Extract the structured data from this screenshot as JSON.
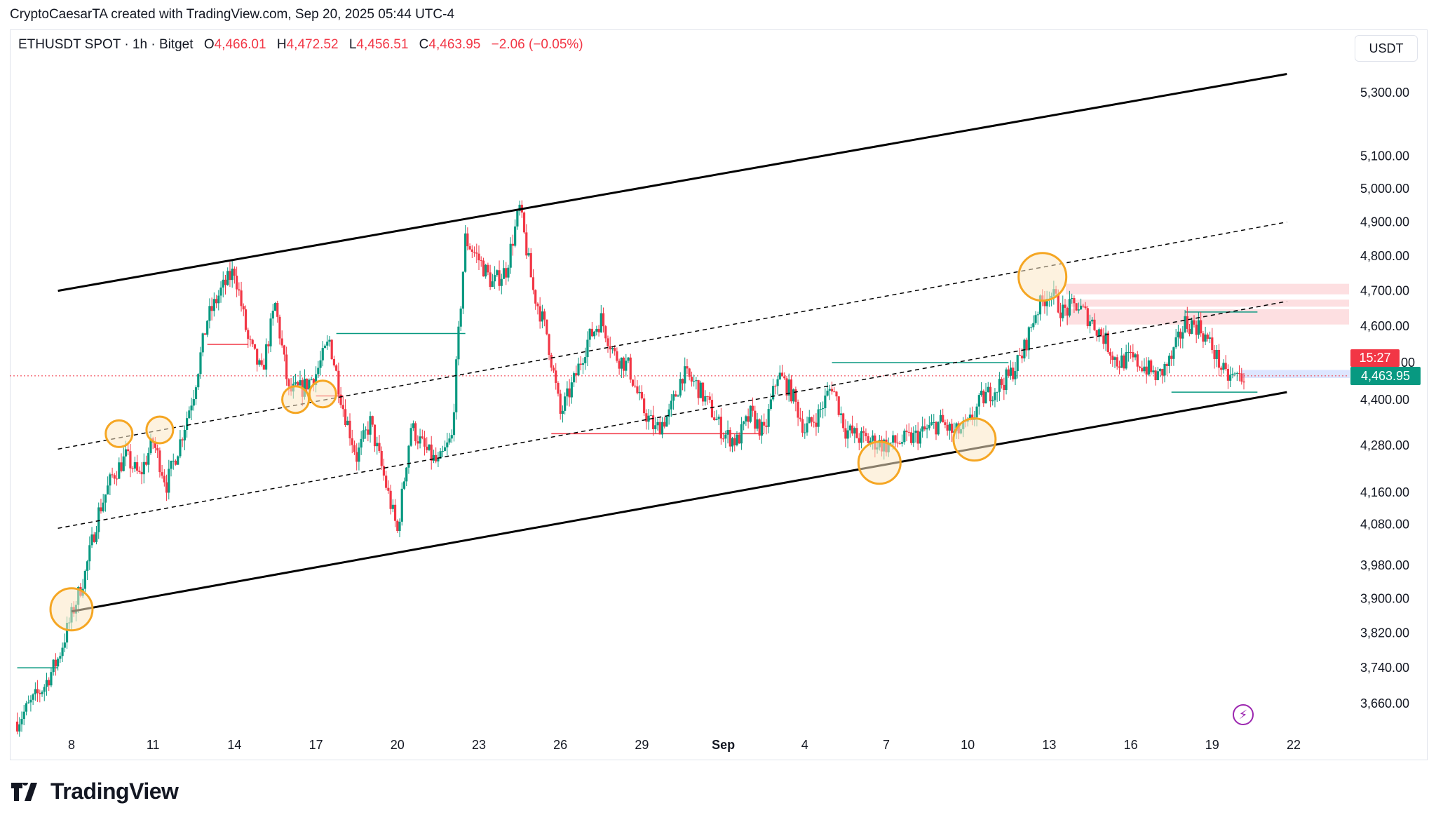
{
  "credit": "CryptoCaesarTA created with TradingView.com, Sep 20, 2025 05:44 UTC-4",
  "legend": {
    "symbol": "ETHUSDT SPOT · 1h · Bitget",
    "o_label": "O",
    "o": "4,466.01",
    "h_label": "H",
    "h": "4,472.52",
    "l_label": "L",
    "l": "4,456.51",
    "c_label": "C",
    "c": "4,463.95",
    "change": "−2.06 (−0.05%)"
  },
  "currency": "USDT",
  "countdown": "15:27",
  "last_price": "4,463.95",
  "brand": "TradingView",
  "colors": {
    "up": "#089981",
    "down": "#f23645",
    "highlight": "#f5a623",
    "trendline": "#000000"
  },
  "chart_data": {
    "type": "candlestick",
    "symbol": "ETHUSDT",
    "interval": "1h",
    "y_scale": "log",
    "ylim": [
      3600,
      5420
    ],
    "y_ticks": [
      {
        "v": 5300,
        "label": "5,300.00"
      },
      {
        "v": 5100,
        "label": "5,100.00"
      },
      {
        "v": 5000,
        "label": "5,000.00"
      },
      {
        "v": 4900,
        "label": "4,900.00"
      },
      {
        "v": 4800,
        "label": "4,800.00"
      },
      {
        "v": 4700,
        "label": "4,700.00"
      },
      {
        "v": 4600,
        "label": "4,600.00"
      },
      {
        "v": 4400,
        "label": "4,400.00"
      },
      {
        "v": 4280,
        "label": "4,280.00"
      },
      {
        "v": 4160,
        "label": "4,160.00"
      },
      {
        "v": 4080,
        "label": "4,080.00"
      },
      {
        "v": 3980,
        "label": "3,980.00"
      },
      {
        "v": 3900,
        "label": "3,900.00"
      },
      {
        "v": 3820,
        "label": "3,820.00"
      },
      {
        "v": 3740,
        "label": "3,740.00"
      },
      {
        "v": 3660,
        "label": "3,660.00"
      }
    ],
    "partial_tick_label": "00",
    "x_range": [
      "2025-08-06",
      "2025-09-24"
    ],
    "x_ticks": [
      {
        "date": "2025-08-08",
        "label": "8"
      },
      {
        "date": "2025-08-11",
        "label": "11"
      },
      {
        "date": "2025-08-14",
        "label": "14"
      },
      {
        "date": "2025-08-17",
        "label": "17"
      },
      {
        "date": "2025-08-20",
        "label": "20"
      },
      {
        "date": "2025-08-23",
        "label": "23"
      },
      {
        "date": "2025-08-26",
        "label": "26"
      },
      {
        "date": "2025-08-29",
        "label": "29"
      },
      {
        "date": "2025-09-01",
        "label": "Sep",
        "bold": true
      },
      {
        "date": "2025-09-04",
        "label": "4"
      },
      {
        "date": "2025-09-07",
        "label": "7"
      },
      {
        "date": "2025-09-10",
        "label": "10"
      },
      {
        "date": "2025-09-13",
        "label": "13"
      },
      {
        "date": "2025-09-16",
        "label": "16"
      },
      {
        "date": "2025-09-19",
        "label": "19"
      },
      {
        "date": "2025-09-22",
        "label": "22"
      }
    ],
    "price_path": [
      [
        "2025-08-06",
        3620
      ],
      [
        "2025-08-07",
        3700
      ],
      [
        "2025-08-07T12",
        3760
      ],
      [
        "2025-08-08",
        3860
      ],
      [
        "2025-08-08T12",
        3960
      ],
      [
        "2025-08-09",
        4110
      ],
      [
        "2025-08-09T12",
        4200
      ],
      [
        "2025-08-10",
        4250
      ],
      [
        "2025-08-10T12",
        4200
      ],
      [
        "2025-08-11",
        4290
      ],
      [
        "2025-08-11T12",
        4180
      ],
      [
        "2025-08-12",
        4290
      ],
      [
        "2025-08-12T12",
        4420
      ],
      [
        "2025-08-13",
        4620
      ],
      [
        "2025-08-13T12",
        4700
      ],
      [
        "2025-08-14",
        4760
      ],
      [
        "2025-08-14T12",
        4560
      ],
      [
        "2025-08-15",
        4470
      ],
      [
        "2025-08-15T12",
        4660
      ],
      [
        "2025-08-16",
        4420
      ],
      [
        "2025-08-16T12",
        4430
      ],
      [
        "2025-08-17",
        4470
      ],
      [
        "2025-08-17T12",
        4560
      ],
      [
        "2025-08-18",
        4380
      ],
      [
        "2025-08-18T12",
        4250
      ],
      [
        "2025-08-19",
        4340
      ],
      [
        "2025-08-19T12",
        4200
      ],
      [
        "2025-08-20",
        4060
      ],
      [
        "2025-08-20T12",
        4330
      ],
      [
        "2025-08-21",
        4270
      ],
      [
        "2025-08-21T12",
        4230
      ],
      [
        "2025-08-22",
        4300
      ],
      [
        "2025-08-22T12",
        4850
      ],
      [
        "2025-08-23",
        4790
      ],
      [
        "2025-08-23T12",
        4720
      ],
      [
        "2025-08-24",
        4760
      ],
      [
        "2025-08-24T12",
        4940
      ],
      [
        "2025-08-25",
        4700
      ],
      [
        "2025-08-25T12",
        4580
      ],
      [
        "2025-08-26",
        4360
      ],
      [
        "2025-08-26T12",
        4450
      ],
      [
        "2025-08-27",
        4560
      ],
      [
        "2025-08-27T12",
        4620
      ],
      [
        "2025-08-28",
        4520
      ],
      [
        "2025-08-28T12",
        4490
      ],
      [
        "2025-08-29",
        4380
      ],
      [
        "2025-08-29T12",
        4320
      ],
      [
        "2025-08-30",
        4360
      ],
      [
        "2025-08-30T12",
        4470
      ],
      [
        "2025-08-31",
        4440
      ],
      [
        "2025-08-31T12",
        4380
      ],
      [
        "2025-09-01",
        4310
      ],
      [
        "2025-09-01T12",
        4290
      ],
      [
        "2025-09-02",
        4360
      ],
      [
        "2025-09-02T12",
        4310
      ],
      [
        "2025-09-03",
        4470
      ],
      [
        "2025-09-03T12",
        4420
      ],
      [
        "2025-09-04",
        4320
      ],
      [
        "2025-09-04T12",
        4360
      ],
      [
        "2025-09-05",
        4440
      ],
      [
        "2025-09-05T12",
        4320
      ],
      [
        "2025-09-06",
        4300
      ],
      [
        "2025-09-06T12",
        4290
      ],
      [
        "2025-09-07",
        4280
      ],
      [
        "2025-09-07T12",
        4290
      ],
      [
        "2025-09-08",
        4300
      ],
      [
        "2025-09-08T12",
        4320
      ],
      [
        "2025-09-09",
        4340
      ],
      [
        "2025-09-09T12",
        4310
      ],
      [
        "2025-09-10",
        4330
      ],
      [
        "2025-09-10T12",
        4400
      ],
      [
        "2025-09-11",
        4430
      ],
      [
        "2025-09-11T12",
        4460
      ],
      [
        "2025-09-12",
        4520
      ],
      [
        "2025-09-12T12",
        4640
      ],
      [
        "2025-09-13",
        4700
      ],
      [
        "2025-09-13T12",
        4640
      ],
      [
        "2025-09-14",
        4660
      ],
      [
        "2025-09-14T12",
        4620
      ],
      [
        "2025-09-15",
        4570
      ],
      [
        "2025-09-15T12",
        4500
      ],
      [
        "2025-09-16",
        4510
      ],
      [
        "2025-09-16T12",
        4490
      ],
      [
        "2025-09-17",
        4460
      ],
      [
        "2025-09-17T12",
        4510
      ],
      [
        "2025-09-18",
        4610
      ],
      [
        "2025-09-18T12",
        4600
      ],
      [
        "2025-09-19",
        4540
      ],
      [
        "2025-09-19T12",
        4460
      ],
      [
        "2025-09-20T05",
        4464
      ]
    ]
  }
}
